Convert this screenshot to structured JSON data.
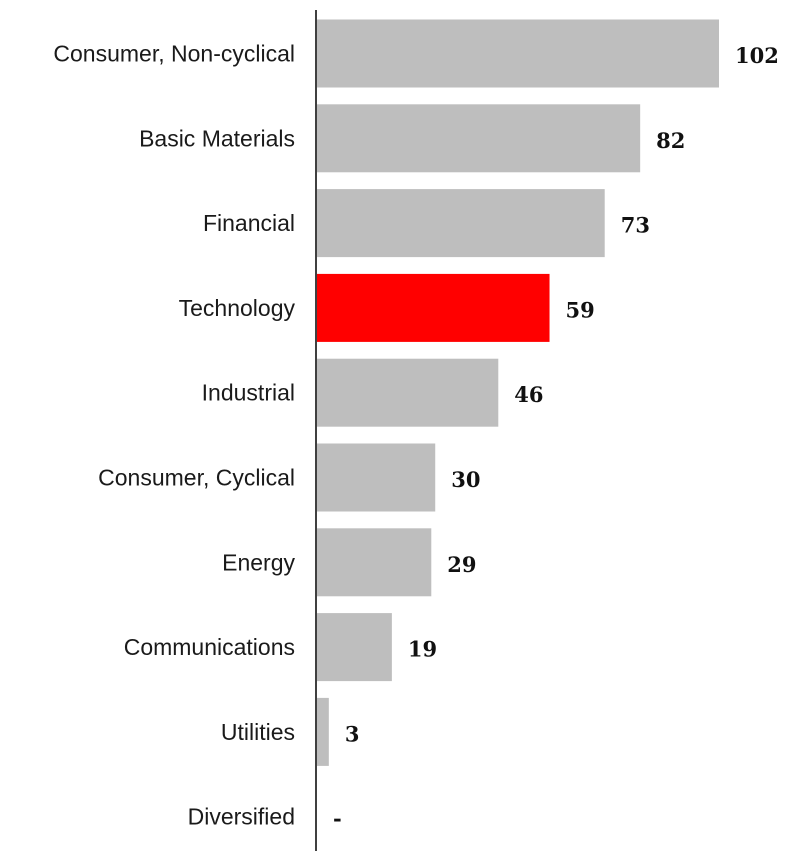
{
  "chart_data": {
    "type": "bar",
    "orientation": "horizontal",
    "title": "",
    "xlabel": "",
    "ylabel": "",
    "categories": [
      "Consumer, Non-cyclical",
      "Basic Materials",
      "Financial",
      "Technology",
      "Industrial",
      "Consumer, Cyclical",
      "Energy",
      "Communications",
      "Utilities",
      "Diversified"
    ],
    "values": [
      102,
      82,
      73,
      59,
      46,
      30,
      29,
      19,
      3,
      0
    ],
    "value_labels": [
      "102",
      "82",
      "73",
      "59",
      "46",
      "30",
      "29",
      "19",
      "3",
      "-"
    ],
    "highlight_category": "Technology",
    "colors": {
      "bar": "#bebebe",
      "highlight": "#ff0000",
      "axis": "#000000"
    },
    "xlim": [
      0,
      102
    ],
    "grid": false,
    "legend": "none"
  }
}
